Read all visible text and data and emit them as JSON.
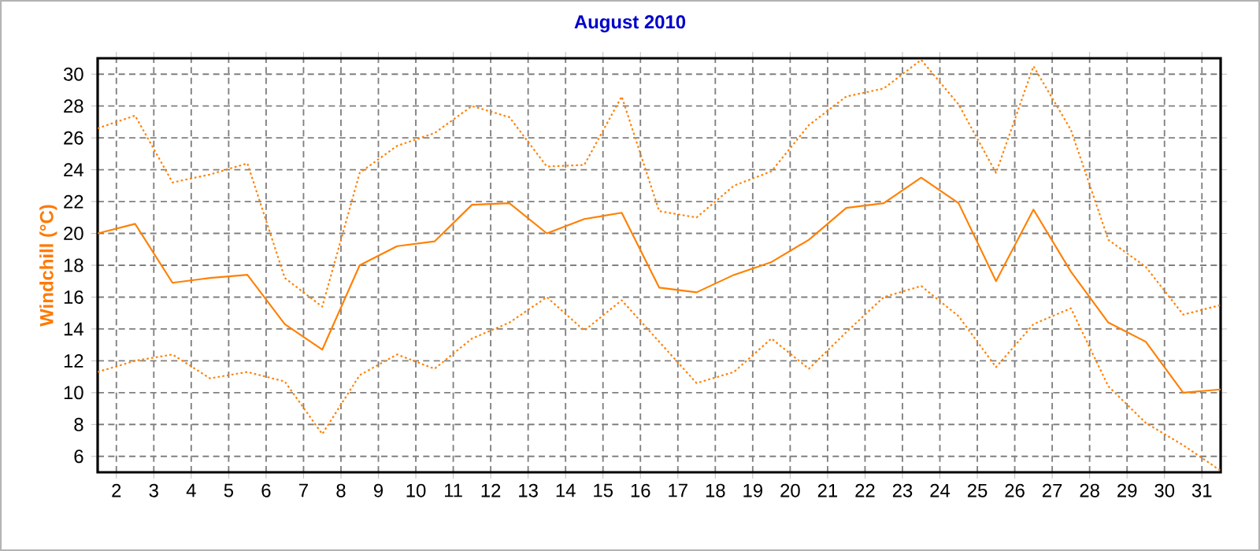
{
  "chart_data": {
    "type": "line",
    "title": "August 2010",
    "ylabel": "Windchill  (°C)",
    "x": [
      1.5,
      2.5,
      3.5,
      4.5,
      5.5,
      6.5,
      7.5,
      8.5,
      9.5,
      10.5,
      11.5,
      12.5,
      13.5,
      14.5,
      15.5,
      16.5,
      17.5,
      18.5,
      19.5,
      20.5,
      21.5,
      22.5,
      23.5,
      24.5,
      25.5,
      26.5,
      27.5,
      28.5,
      29.5,
      30.5,
      31.5
    ],
    "series": [
      {
        "color": "#ff8000",
        "line_style": "dotted",
        "values": [
          26.6,
          27.4,
          23.2,
          23.7,
          24.4,
          17.2,
          15.4,
          23.8,
          25.5,
          26.3,
          28.0,
          27.3,
          24.2,
          24.3,
          28.6,
          21.4,
          21.0,
          23.0,
          23.9,
          26.8,
          28.6,
          29.1,
          30.9,
          28.1,
          23.8,
          30.5,
          26.5,
          19.6,
          17.9,
          14.9,
          15.5
        ]
      },
      {
        "color": "#ff8000",
        "line_style": "solid",
        "values": [
          20.0,
          20.6,
          16.9,
          17.2,
          17.4,
          14.3,
          12.7,
          18.0,
          19.2,
          19.5,
          21.8,
          21.9,
          20.0,
          20.9,
          21.3,
          16.6,
          16.3,
          17.4,
          18.2,
          19.6,
          21.6,
          21.9,
          23.5,
          21.9,
          17.0,
          21.5,
          17.6,
          14.4,
          13.2,
          10.0,
          10.2
        ]
      },
      {
        "color": "#ff8000",
        "line_style": "dotted",
        "values": [
          11.3,
          12.0,
          12.4,
          10.9,
          11.3,
          10.7,
          7.4,
          11.1,
          12.4,
          11.5,
          13.4,
          14.4,
          16.0,
          13.9,
          15.8,
          13.2,
          10.6,
          11.3,
          13.4,
          11.5,
          13.8,
          16.0,
          16.7,
          14.8,
          11.6,
          14.3,
          15.3,
          10.4,
          8.1,
          6.7,
          5.1
        ]
      }
    ],
    "xlim": [
      1.5,
      31.5
    ],
    "xticks": [
      2,
      3,
      4,
      5,
      6,
      7,
      8,
      9,
      10,
      11,
      12,
      13,
      14,
      15,
      16,
      17,
      18,
      19,
      20,
      21,
      22,
      23,
      24,
      25,
      26,
      27,
      28,
      29,
      30,
      31
    ],
    "ylim": [
      5,
      31
    ],
    "yticks": [
      6,
      8,
      10,
      12,
      14,
      16,
      18,
      20,
      22,
      24,
      26,
      28,
      30
    ],
    "grid": true,
    "marker": "none"
  }
}
